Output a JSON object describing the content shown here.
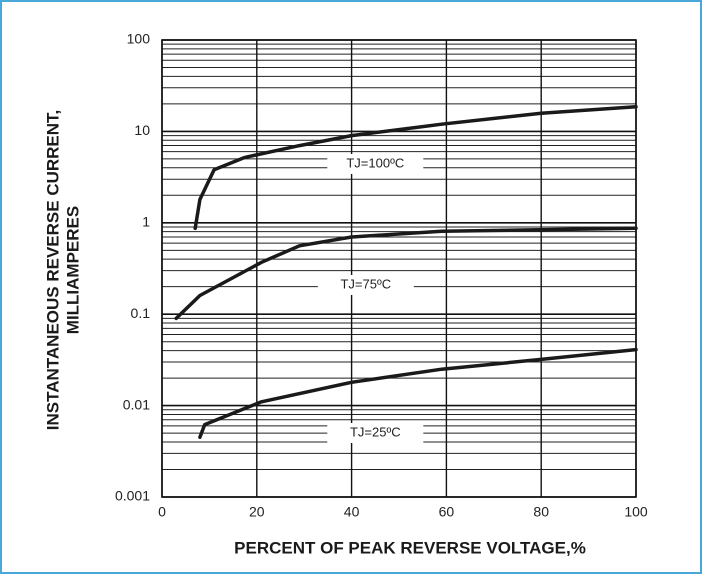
{
  "chart_data": {
    "type": "line",
    "xlabel": "PERCENT OF PEAK REVERSE VOLTAGE,%",
    "ylabel": [
      "INSTANTANEOUS REVERSE CURRENT,",
      "MILLIAMPERES"
    ],
    "xlim": [
      0,
      100
    ],
    "xticks": [
      0,
      20,
      40,
      60,
      80,
      100
    ],
    "ylim": [
      0.001,
      100
    ],
    "yticks": [
      0.001,
      0.01,
      0.1,
      1,
      10,
      100
    ],
    "yscale": "log",
    "grid": true,
    "minor_grid": true,
    "series": [
      {
        "name": "TJ=100ºC",
        "color": "#1a1a1a",
        "x": [
          7,
          8,
          11,
          17.5,
          29,
          40,
          59,
          80,
          100
        ],
        "values": [
          0.87,
          1.8,
          3.8,
          5.2,
          7,
          9,
          12,
          15.8,
          18.6
        ]
      },
      {
        "name": "TJ=75ºC",
        "color": "#1a1a1a",
        "x": [
          3,
          8,
          21,
          29,
          40,
          59,
          100
        ],
        "values": [
          0.09,
          0.16,
          0.37,
          0.56,
          0.7,
          0.81,
          0.87
        ]
      },
      {
        "name": "TJ=25ºC",
        "color": "#1a1a1a",
        "x": [
          8,
          9,
          21,
          40,
          59,
          80,
          100
        ],
        "values": [
          0.0045,
          0.0062,
          0.011,
          0.018,
          0.025,
          0.032,
          0.041
        ]
      }
    ]
  }
}
